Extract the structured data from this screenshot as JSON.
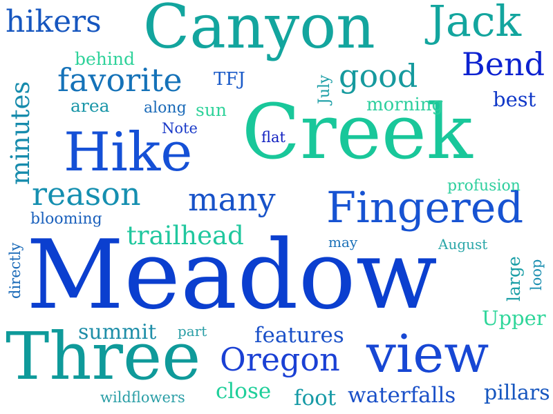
{
  "words": [
    {
      "text": "Meadow",
      "color": "#0b3fcf",
      "rotated": false
    },
    {
      "text": "Creek",
      "color": "#19c79a",
      "rotated": false
    },
    {
      "text": "Three",
      "color": "#0f9a9a",
      "rotated": false
    },
    {
      "text": "Canyon",
      "color": "#13a59e",
      "rotated": false
    },
    {
      "text": "Hike",
      "color": "#1550d6",
      "rotated": false
    },
    {
      "text": "view",
      "color": "#1747d4",
      "rotated": false
    },
    {
      "text": "Fingered",
      "color": "#1753d2",
      "rotated": false
    },
    {
      "text": "Jack",
      "color": "#13a59e",
      "rotated": false
    },
    {
      "text": "Oregon",
      "color": "#1a40d4",
      "rotated": false
    },
    {
      "text": "Bend",
      "color": "#0d22d0",
      "rotated": false
    },
    {
      "text": "favorite",
      "color": "#1572b8",
      "rotated": false
    },
    {
      "text": "good",
      "color": "#169a9e",
      "rotated": false
    },
    {
      "text": "many",
      "color": "#1752c8",
      "rotated": false
    },
    {
      "text": "reason",
      "color": "#158fb0",
      "rotated": false
    },
    {
      "text": "hikers",
      "color": "#1656bf",
      "rotated": false
    },
    {
      "text": "minutes",
      "color": "#168bac",
      "rotated": true
    },
    {
      "text": "trailhead",
      "color": "#20c79e",
      "rotated": false
    },
    {
      "text": "features",
      "color": "#1a50c8",
      "rotated": false
    },
    {
      "text": "waterfalls",
      "color": "#1a50c8",
      "rotated": false
    },
    {
      "text": "close",
      "color": "#1fcf9a",
      "rotated": false
    },
    {
      "text": "foot",
      "color": "#169aa6",
      "rotated": false
    },
    {
      "text": "pillars",
      "color": "#1656bf",
      "rotated": false
    },
    {
      "text": "summit",
      "color": "#1f8ea8",
      "rotated": false
    },
    {
      "text": "Upper",
      "color": "#2fd69a",
      "rotated": false
    },
    {
      "text": "best",
      "color": "#1038c8",
      "rotated": false
    },
    {
      "text": "morning",
      "color": "#2ecf9e",
      "rotated": false
    },
    {
      "text": "TFJ",
      "color": "#1a5ac8",
      "rotated": false
    },
    {
      "text": "sun",
      "color": "#2fd29a",
      "rotated": false
    },
    {
      "text": "behind",
      "color": "#2fd29a",
      "rotated": false
    },
    {
      "text": "area",
      "color": "#1a96a8",
      "rotated": false
    },
    {
      "text": "along",
      "color": "#1a6ab8",
      "rotated": false
    },
    {
      "text": "Note",
      "color": "#1a3ac8",
      "rotated": false
    },
    {
      "text": "flat",
      "color": "#0f1ec0",
      "rotated": false
    },
    {
      "text": "July",
      "color": "#1a9ea6",
      "rotated": true
    },
    {
      "text": "profusion",
      "color": "#2ecf9e",
      "rotated": false
    },
    {
      "text": "blooming",
      "color": "#1a60bc",
      "rotated": false
    },
    {
      "text": "may",
      "color": "#1a70b8",
      "rotated": false
    },
    {
      "text": "August",
      "color": "#2aa6a8",
      "rotated": false
    },
    {
      "text": "large",
      "color": "#1a9ea6",
      "rotated": true
    },
    {
      "text": "loop",
      "color": "#1a8eb0",
      "rotated": true
    },
    {
      "text": "directly",
      "color": "#1a6ab8",
      "rotated": true
    },
    {
      "text": "part",
      "color": "#2a9ea6",
      "rotated": false
    },
    {
      "text": "wildflowers",
      "color": "#2a9ea6",
      "rotated": false
    }
  ]
}
